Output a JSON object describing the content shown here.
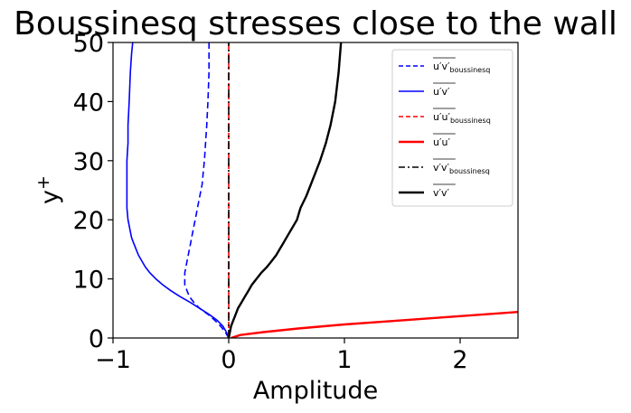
{
  "chart_data": {
    "type": "line",
    "title": "Boussinesq stresses close to the wall",
    "xlabel": "Amplitude",
    "ylabel": "y",
    "ylabel_sup": "+",
    "xlim": [
      -1,
      2.5
    ],
    "ylim": [
      0,
      50
    ],
    "xticks": [
      -1,
      0,
      1,
      2
    ],
    "xtick_labels": [
      "−1",
      "0",
      "1",
      "2"
    ],
    "yticks": [
      0,
      10,
      20,
      30,
      40,
      50
    ],
    "ytick_labels": [
      "0",
      "10",
      "20",
      "30",
      "40",
      "50"
    ],
    "grid": false,
    "legend_position": "upper right",
    "series": [
      {
        "name": "u'v'_boussinesq",
        "legend_main": "u′v′",
        "legend_sub": "boussinesq",
        "color": "#0000ff",
        "style": "dashed",
        "width": 1.6,
        "points": [
          [
            0,
            0
          ],
          [
            -0.03,
            1
          ],
          [
            -0.07,
            2
          ],
          [
            -0.12,
            3
          ],
          [
            -0.18,
            4
          ],
          [
            -0.25,
            5
          ],
          [
            -0.3,
            6
          ],
          [
            -0.34,
            7
          ],
          [
            -0.36,
            8
          ],
          [
            -0.38,
            9
          ],
          [
            -0.38,
            10
          ],
          [
            -0.38,
            11
          ],
          [
            -0.37,
            12
          ],
          [
            -0.36,
            13
          ],
          [
            -0.35,
            14
          ],
          [
            -0.34,
            15
          ],
          [
            -0.33,
            16
          ],
          [
            -0.32,
            17
          ],
          [
            -0.31,
            18
          ],
          [
            -0.3,
            19
          ],
          [
            -0.29,
            20
          ],
          [
            -0.28,
            21
          ],
          [
            -0.27,
            22
          ],
          [
            -0.26,
            23
          ],
          [
            -0.25,
            24
          ],
          [
            -0.24,
            25
          ],
          [
            -0.23,
            26
          ],
          [
            -0.22,
            28
          ],
          [
            -0.21,
            30
          ],
          [
            -0.2,
            33
          ],
          [
            -0.19,
            36
          ],
          [
            -0.18,
            40
          ],
          [
            -0.17,
            45
          ],
          [
            -0.17,
            50
          ]
        ]
      },
      {
        "name": "u'v'",
        "legend_main": "u′v′",
        "legend_sub": "",
        "color": "#0000ff",
        "style": "solid",
        "width": 1.6,
        "points": [
          [
            0,
            0
          ],
          [
            -0.02,
            1
          ],
          [
            -0.05,
            2
          ],
          [
            -0.1,
            3
          ],
          [
            -0.17,
            4
          ],
          [
            -0.25,
            5
          ],
          [
            -0.33,
            6
          ],
          [
            -0.42,
            7
          ],
          [
            -0.5,
            8
          ],
          [
            -0.57,
            9
          ],
          [
            -0.63,
            10
          ],
          [
            -0.68,
            11
          ],
          [
            -0.72,
            12
          ],
          [
            -0.75,
            13
          ],
          [
            -0.78,
            14
          ],
          [
            -0.8,
            15
          ],
          [
            -0.82,
            16
          ],
          [
            -0.84,
            17
          ],
          [
            -0.85,
            18
          ],
          [
            -0.86,
            19
          ],
          [
            -0.87,
            20
          ],
          [
            -0.88,
            22
          ],
          [
            -0.88,
            24
          ],
          [
            -0.88,
            26
          ],
          [
            -0.88,
            28
          ],
          [
            -0.88,
            30
          ],
          [
            -0.87,
            33
          ],
          [
            -0.87,
            36
          ],
          [
            -0.86,
            40
          ],
          [
            -0.85,
            45
          ],
          [
            -0.84,
            48
          ],
          [
            -0.83,
            50
          ]
        ]
      },
      {
        "name": "u'u'_boussinesq",
        "legend_main": "u′u′",
        "legend_sub": "boussinesq",
        "color": "#ff0000",
        "style": "dashed",
        "width": 1.6,
        "points": [
          [
            0,
            0
          ],
          [
            0,
            10
          ],
          [
            0,
            20
          ],
          [
            0,
            30
          ],
          [
            0,
            40
          ],
          [
            0,
            50
          ]
        ]
      },
      {
        "name": "u'u'",
        "legend_main": "u′u′",
        "legend_sub": "",
        "color": "#ff0000",
        "style": "solid",
        "width": 2.4,
        "points": [
          [
            0.02,
            0
          ],
          [
            0.1,
            0.5
          ],
          [
            0.3,
            1.0
          ],
          [
            0.6,
            1.6
          ],
          [
            1.0,
            2.3
          ],
          [
            1.5,
            3.0
          ],
          [
            2.0,
            3.7
          ],
          [
            2.5,
            4.4
          ]
        ]
      },
      {
        "name": "v'v'_boussinesq",
        "legend_main": "v′v′",
        "legend_sub": "boussinesq",
        "color": "#000000",
        "style": "dashdot",
        "width": 1.6,
        "points": [
          [
            0,
            0
          ],
          [
            0,
            10
          ],
          [
            0,
            20
          ],
          [
            0,
            30
          ],
          [
            0,
            40
          ],
          [
            0,
            50
          ]
        ]
      },
      {
        "name": "v'v'",
        "legend_main": "v′v′",
        "legend_sub": "",
        "color": "#000000",
        "style": "solid",
        "width": 2.4,
        "points": [
          [
            0,
            0
          ],
          [
            0.01,
            1
          ],
          [
            0.02,
            2
          ],
          [
            0.04,
            3
          ],
          [
            0.06,
            4
          ],
          [
            0.08,
            5
          ],
          [
            0.11,
            6
          ],
          [
            0.14,
            7
          ],
          [
            0.17,
            8
          ],
          [
            0.2,
            9
          ],
          [
            0.24,
            10
          ],
          [
            0.28,
            11
          ],
          [
            0.33,
            12
          ],
          [
            0.37,
            13
          ],
          [
            0.41,
            14
          ],
          [
            0.44,
            15
          ],
          [
            0.47,
            16
          ],
          [
            0.5,
            17
          ],
          [
            0.53,
            18
          ],
          [
            0.56,
            19
          ],
          [
            0.59,
            20
          ],
          [
            0.62,
            22
          ],
          [
            0.67,
            24
          ],
          [
            0.71,
            26
          ],
          [
            0.75,
            28
          ],
          [
            0.79,
            30
          ],
          [
            0.84,
            33
          ],
          [
            0.88,
            36
          ],
          [
            0.92,
            40
          ],
          [
            0.95,
            45
          ],
          [
            0.97,
            50
          ]
        ]
      }
    ]
  }
}
